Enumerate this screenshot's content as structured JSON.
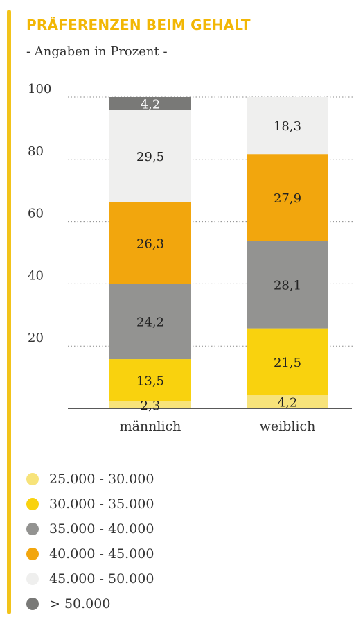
{
  "header": {
    "title": "PRÄFERENZEN BEIM GEHALT",
    "subtitle": "- Angaben in Prozent -"
  },
  "colors": {
    "accent": "#f2c31a",
    "title": "#f2b705"
  },
  "legend": [
    {
      "label": "25.000 - 30.000",
      "color": "#f7e37a"
    },
    {
      "label": "30.000 - 35.000",
      "color": "#f9d20e"
    },
    {
      "label": "35.000 - 40.000",
      "color": "#939391"
    },
    {
      "label": "40.000 - 45.000",
      "color": "#f2a60d"
    },
    {
      "label": "45.000 - 50.000",
      "color": "#efefee"
    },
    {
      "label": "> 50.000",
      "color": "#797977"
    }
  ],
  "chart_data": {
    "type": "bar",
    "stacked": true,
    "title": "PRÄFERENZEN BEIM GEHALT",
    "subtitle": "- Angaben in Prozent -",
    "categories": [
      "männlich",
      "weiblich"
    ],
    "series": [
      {
        "name": "25.000 - 30.000",
        "color": "#f7e37a",
        "values": [
          2.3,
          4.2
        ],
        "labels": [
          "2,3",
          "4,2"
        ]
      },
      {
        "name": "30.000 - 35.000",
        "color": "#f9d20e",
        "values": [
          13.5,
          21.5
        ],
        "labels": [
          "13,5",
          "21,5"
        ]
      },
      {
        "name": "35.000 - 40.000",
        "color": "#939391",
        "values": [
          24.2,
          28.1
        ],
        "labels": [
          "24,2",
          "28,1"
        ]
      },
      {
        "name": "40.000 - 45.000",
        "color": "#f2a60d",
        "values": [
          26.3,
          27.9
        ],
        "labels": [
          "26,3",
          "27,9"
        ]
      },
      {
        "name": "45.000 - 50.000",
        "color": "#efefee",
        "values": [
          29.5,
          18.3
        ],
        "labels": [
          "29,5",
          "18,3"
        ]
      },
      {
        "name": "> 50.000",
        "color": "#797977",
        "values": [
          4.2,
          0
        ],
        "labels": [
          "4,2",
          ""
        ]
      }
    ],
    "yticks": [
      20,
      40,
      60,
      80,
      100
    ],
    "ylim": [
      0,
      100
    ],
    "grid": true,
    "grid_style": "dotted",
    "legend_position": "bottom"
  }
}
